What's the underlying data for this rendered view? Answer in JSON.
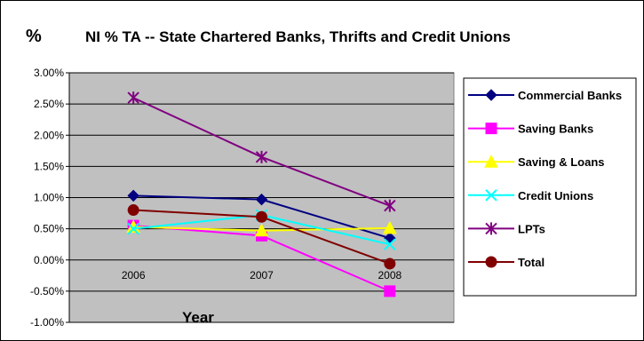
{
  "chart_data": {
    "type": "line",
    "title": "NI % TA -- State Chartered Banks, Thrifts and Credit Unions",
    "ylabel": "%",
    "xlabel": "Year",
    "categories": [
      "2006",
      "2007",
      "2008"
    ],
    "ylim": [
      -1.0,
      3.0
    ],
    "yticks": [
      "3.00%",
      "2.50%",
      "2.00%",
      "1.50%",
      "1.00%",
      "0.50%",
      "0.00%",
      "-0.50%",
      "-1.00%"
    ],
    "plot_background": "#c0c0c0",
    "grid": "horizontal",
    "legend_position": "right",
    "series": [
      {
        "name": "Commercial Banks",
        "values": [
          1.03,
          0.97,
          0.35
        ],
        "color": "#000080",
        "marker": "diamond"
      },
      {
        "name": "Saving Banks",
        "values": [
          0.55,
          0.39,
          -0.5
        ],
        "color": "#ff00ff",
        "marker": "square"
      },
      {
        "name": "Saving & Loans",
        "values": [
          0.53,
          0.47,
          0.51
        ],
        "color": "#ffff00",
        "marker": "triangle"
      },
      {
        "name": "Credit Unions",
        "values": [
          0.5,
          0.72,
          0.25
        ],
        "color": "#00ffff",
        "marker": "x"
      },
      {
        "name": "LPTs",
        "values": [
          2.6,
          1.65,
          0.87
        ],
        "color": "#800080",
        "marker": "star"
      },
      {
        "name": "Total",
        "values": [
          0.8,
          0.69,
          -0.06
        ],
        "color": "#800000",
        "marker": "circle"
      }
    ]
  }
}
